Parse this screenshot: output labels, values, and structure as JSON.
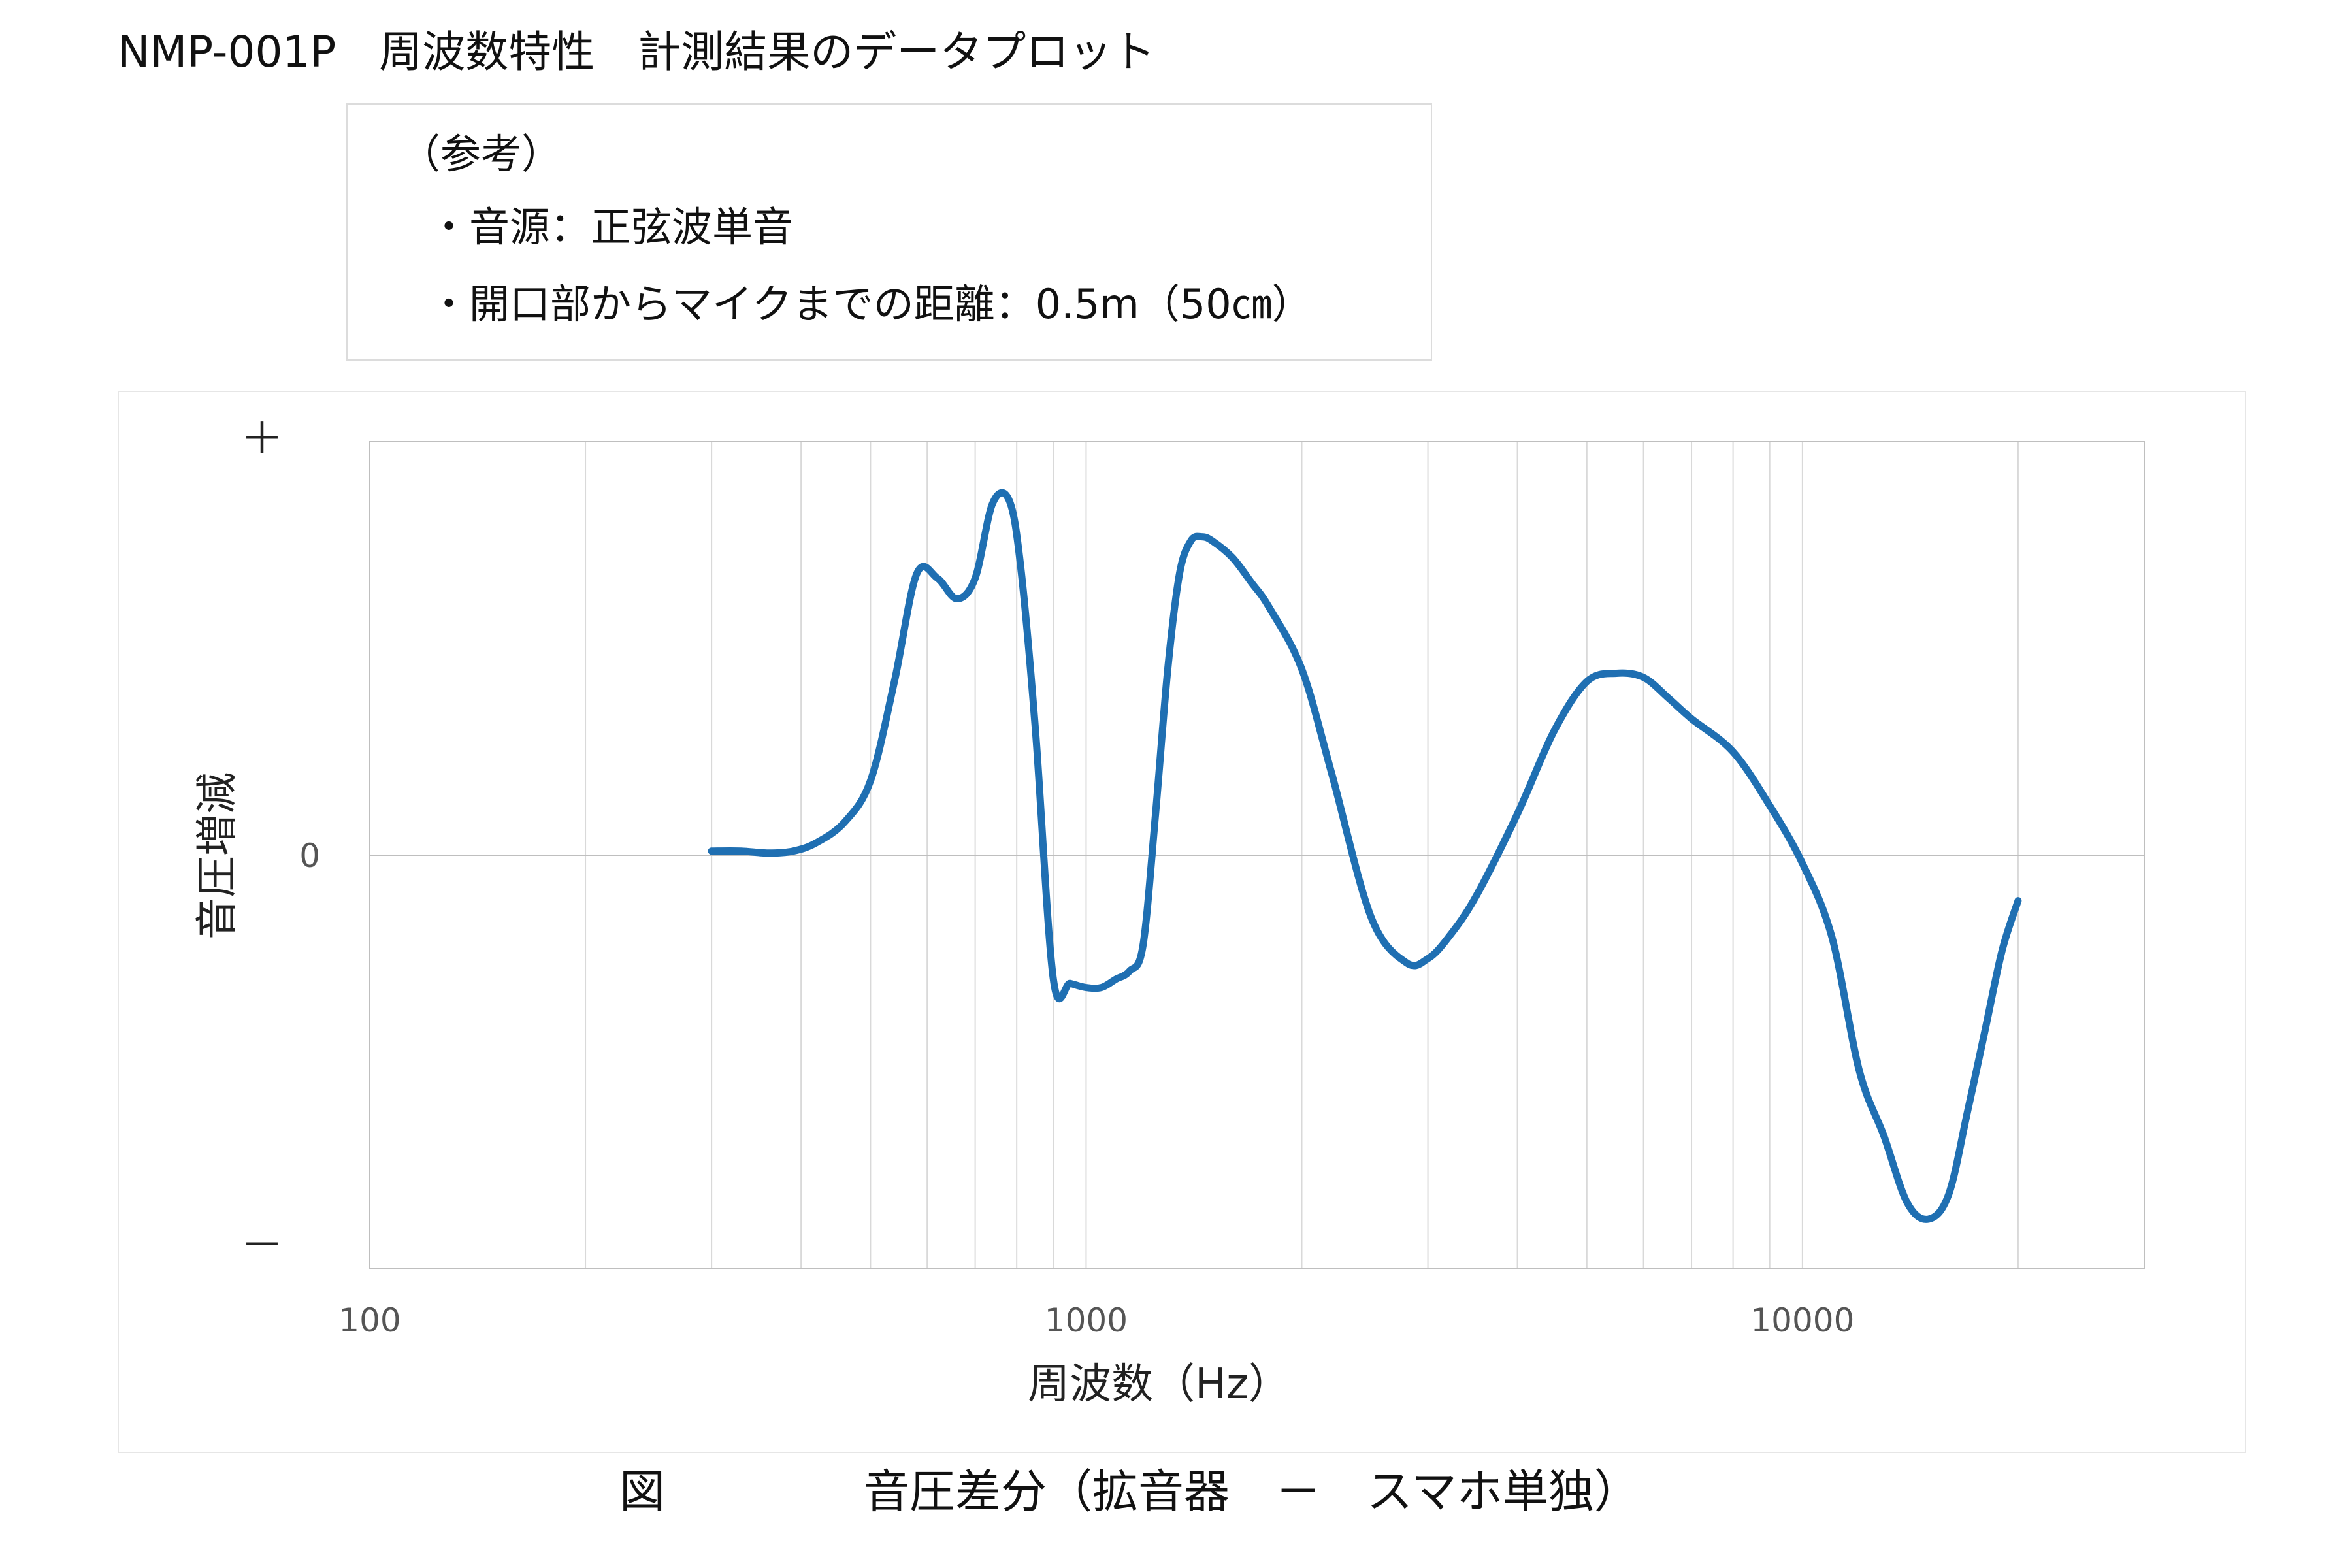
{
  "page": {
    "title": "NMP-001P　周波数特性　計測結果のデータプロット"
  },
  "notes": {
    "heading": "（参考）",
    "items": [
      "・音源：正弦波単音",
      "・開口部からマイクまでの距離：0.5m（50㎝）"
    ]
  },
  "chart_data": {
    "type": "line",
    "title": "",
    "xlabel": "周波数（Hz）",
    "ylabel": "音圧増減",
    "x_scale": "log",
    "xlim": [
      100,
      30000
    ],
    "ylim": [
      -1,
      1
    ],
    "grid": true,
    "x_tick_labels": [
      {
        "value": 100,
        "label": "100"
      },
      {
        "value": 1000,
        "label": "1000"
      },
      {
        "value": 10000,
        "label": "10000"
      }
    ],
    "y_tick_labels": [
      {
        "value": 1,
        "label": "＋"
      },
      {
        "value": 0,
        "label": "0"
      },
      {
        "value": -0.95,
        "label": "－"
      }
    ],
    "series": [
      {
        "name": "",
        "color": "#1f6fb2",
        "x": [
          300,
          330,
          360,
          390,
          420,
          460,
          500,
          540,
          580,
          620,
          660,
          700,
          740,
          780,
          810,
          850,
          900,
          950,
          1000,
          1050,
          1100,
          1150,
          1200,
          1250,
          1300,
          1350,
          1400,
          1450,
          1500,
          1600,
          1700,
          1800,
          2000,
          2200,
          2500,
          2800,
          3000,
          3200,
          3500,
          4000,
          4500,
          5000,
          5500,
          6000,
          6500,
          7000,
          8000,
          9000,
          10000,
          11000,
          12000,
          13000,
          14000,
          15000,
          16000,
          17000,
          18000,
          19000,
          20000
        ],
        "y": [
          0.01,
          0.01,
          0.005,
          0.01,
          0.03,
          0.08,
          0.18,
          0.42,
          0.68,
          0.67,
          0.62,
          0.67,
          0.85,
          0.86,
          0.7,
          0.3,
          -0.3,
          -0.31,
          -0.32,
          -0.32,
          -0.3,
          -0.28,
          -0.22,
          0.1,
          0.45,
          0.68,
          0.76,
          0.77,
          0.76,
          0.72,
          0.66,
          0.6,
          0.45,
          0.2,
          -0.15,
          -0.26,
          -0.25,
          -0.2,
          -0.1,
          0.1,
          0.3,
          0.42,
          0.44,
          0.43,
          0.38,
          0.33,
          0.25,
          0.12,
          -0.02,
          -0.2,
          -0.52,
          -0.68,
          -0.84,
          -0.88,
          -0.82,
          -0.62,
          -0.42,
          -0.23,
          -0.11
        ]
      }
    ]
  },
  "caption": {
    "label": "図",
    "text": "音圧差分（拡音器　－　スマホ単独）"
  }
}
